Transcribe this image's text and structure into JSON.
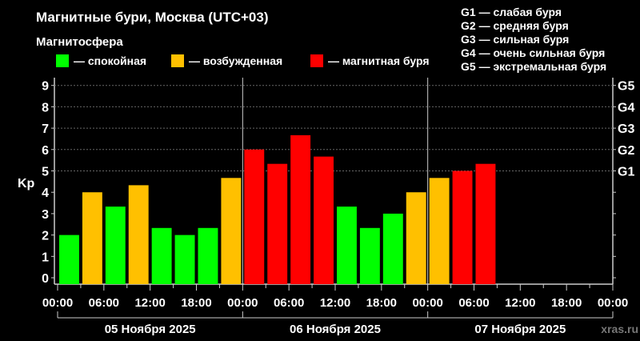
{
  "title": "Магнитные бури, Москва (UTC+03)",
  "legend": {
    "title": "Магнитосфера",
    "items": [
      {
        "label": "— спокойная",
        "color": "#00ff00"
      },
      {
        "label": "— возбужденная",
        "color": "#ffc000"
      },
      {
        "label": "— магнитная буря",
        "color": "#ff0000"
      }
    ]
  },
  "g_scale": [
    "G1 — слабая буря",
    "G2 — средняя буря",
    "G3 — сильная буря",
    "G4 — очень сильная буря",
    "G5 — экстремальная буря"
  ],
  "watermark": "xras.ru",
  "chart_data": {
    "type": "bar",
    "ylabel": "Kp",
    "ylim": [
      0,
      9
    ],
    "yticks": [
      "0",
      "1",
      "2",
      "3",
      "4",
      "5",
      "6",
      "7",
      "8",
      "9"
    ],
    "right_ticks": [
      {
        "value": 5,
        "label": "G1"
      },
      {
        "value": 6,
        "label": "G2"
      },
      {
        "value": 7,
        "label": "G3"
      },
      {
        "value": 8,
        "label": "G4"
      },
      {
        "value": 9,
        "label": "G5"
      }
    ],
    "grid": "dotted horizontal at G levels",
    "xticks": [
      "00:00",
      "06:00",
      "12:00",
      "18:00",
      "00:00",
      "06:00",
      "12:00",
      "18:00",
      "00:00",
      "06:00",
      "12:00",
      "18:00",
      "00:00"
    ],
    "days": [
      "05 Ноября 2025",
      "06 Ноября 2025",
      "07 Ноября 2025"
    ],
    "interval_hours": 3,
    "values": [
      2,
      4,
      3.33,
      4.33,
      2.33,
      2,
      2.33,
      4.67,
      6,
      5.33,
      6.67,
      5.67,
      3.33,
      2.33,
      3,
      4,
      4.67,
      5,
      5.33
    ],
    "levels": [
      "quiet",
      "active",
      "quiet",
      "active",
      "quiet",
      "quiet",
      "quiet",
      "active",
      "storm",
      "storm",
      "storm",
      "storm",
      "quiet",
      "quiet",
      "quiet",
      "active",
      "active",
      "storm",
      "storm"
    ],
    "colors": {
      "quiet": "#00ff00",
      "active": "#ffc000",
      "storm": "#ff0000"
    }
  }
}
